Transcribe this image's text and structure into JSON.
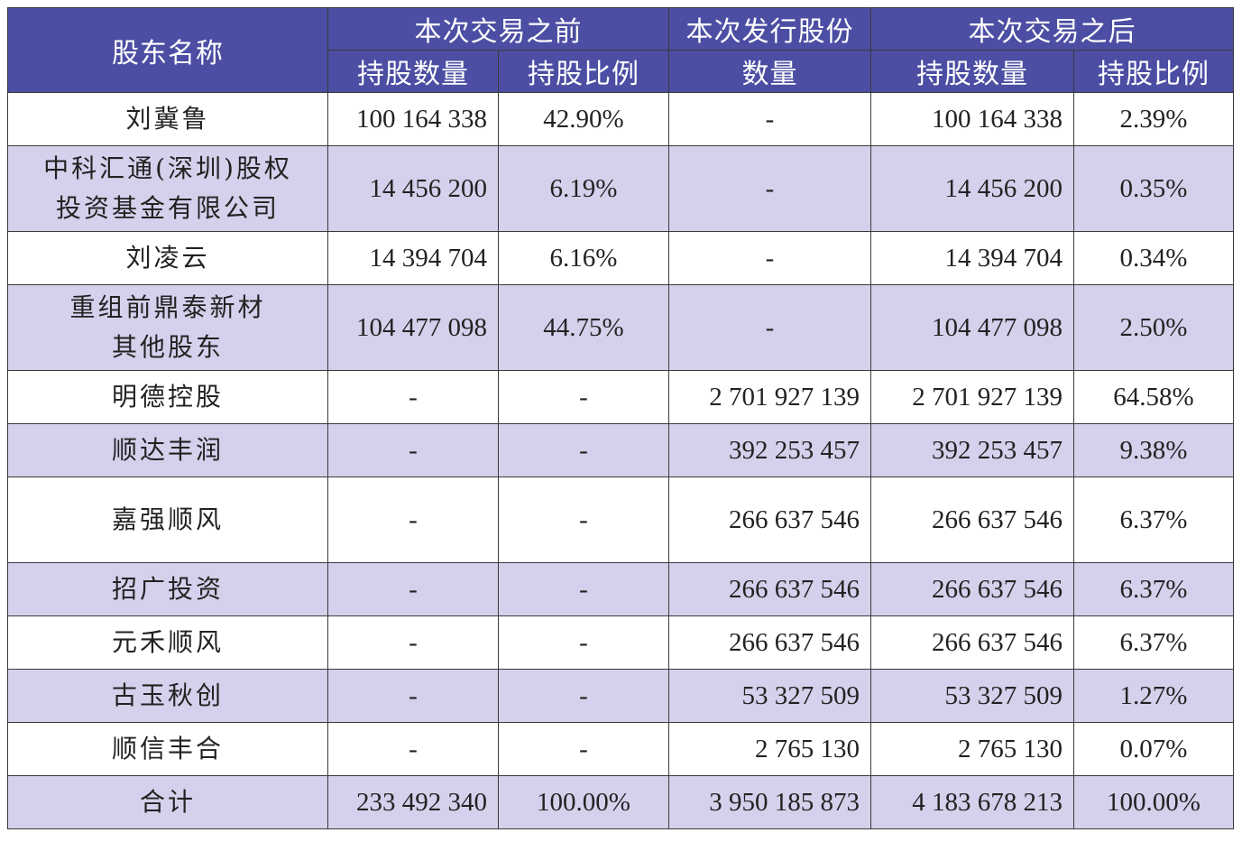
{
  "header": {
    "shareholder_name": "股东名称",
    "before_group": "本次交易之前",
    "issue_group_line1": "本次发行股份",
    "issue_group_line2": "数量",
    "after_group": "本次交易之后",
    "holding_qty": "持股数量",
    "holding_ratio": "持股比例"
  },
  "rows": [
    {
      "name_l1": "刘冀鲁",
      "name_l2": "",
      "before_qty": "100 164 338",
      "before_ratio": "42.90%",
      "issue_qty": "-",
      "after_qty": "100 164 338",
      "after_ratio": "2.39%"
    },
    {
      "name_l1": "中科汇通(深圳)股权",
      "name_l2": "投资基金有限公司",
      "before_qty": "14 456 200",
      "before_ratio": "6.19%",
      "issue_qty": "-",
      "after_qty": "14 456 200",
      "after_ratio": "0.35%"
    },
    {
      "name_l1": "刘凌云",
      "name_l2": "",
      "before_qty": "14 394 704",
      "before_ratio": "6.16%",
      "issue_qty": "-",
      "after_qty": "14 394 704",
      "after_ratio": "0.34%"
    },
    {
      "name_l1": "重组前鼎泰新材",
      "name_l2": "其他股东",
      "before_qty": "104 477 098",
      "before_ratio": "44.75%",
      "issue_qty": "-",
      "after_qty": "104 477 098",
      "after_ratio": "2.50%"
    },
    {
      "name_l1": "明德控股",
      "name_l2": "",
      "before_qty": "-",
      "before_ratio": "-",
      "issue_qty": "2 701 927 139",
      "after_qty": "2 701 927 139",
      "after_ratio": "64.58%"
    },
    {
      "name_l1": "顺达丰润",
      "name_l2": "",
      "before_qty": "-",
      "before_ratio": "-",
      "issue_qty": "392 253 457",
      "after_qty": "392 253 457",
      "after_ratio": "9.38%"
    },
    {
      "name_l1": "嘉强顺风",
      "name_l2": "",
      "before_qty": "-",
      "before_ratio": "-",
      "issue_qty": "266 637 546",
      "after_qty": "266 637 546",
      "after_ratio": "6.37%"
    },
    {
      "name_l1": "招广投资",
      "name_l2": "",
      "before_qty": "-",
      "before_ratio": "-",
      "issue_qty": "266 637 546",
      "after_qty": "266 637 546",
      "after_ratio": "6.37%"
    },
    {
      "name_l1": "元禾顺风",
      "name_l2": "",
      "before_qty": "-",
      "before_ratio": "-",
      "issue_qty": "266 637 546",
      "after_qty": "266 637 546",
      "after_ratio": "6.37%"
    },
    {
      "name_l1": "古玉秋创",
      "name_l2": "",
      "before_qty": "-",
      "before_ratio": "-",
      "issue_qty": "53 327 509",
      "after_qty": "53 327 509",
      "after_ratio": "1.27%"
    },
    {
      "name_l1": "顺信丰合",
      "name_l2": "",
      "before_qty": "-",
      "before_ratio": "-",
      "issue_qty": "2 765 130",
      "after_qty": "2 765 130",
      "after_ratio": "0.07%"
    },
    {
      "name_l1": "合计",
      "name_l2": "",
      "before_qty": "233 492 340",
      "before_ratio": "100.00%",
      "issue_qty": "3 950 185 873",
      "after_qty": "4 183 678 213",
      "after_ratio": "100.00%"
    }
  ],
  "colors": {
    "header_bg": "#4b4ea3",
    "header_text": "#ffffff",
    "shaded_row": "#d3d1eb",
    "border": "#3a3a3a"
  }
}
